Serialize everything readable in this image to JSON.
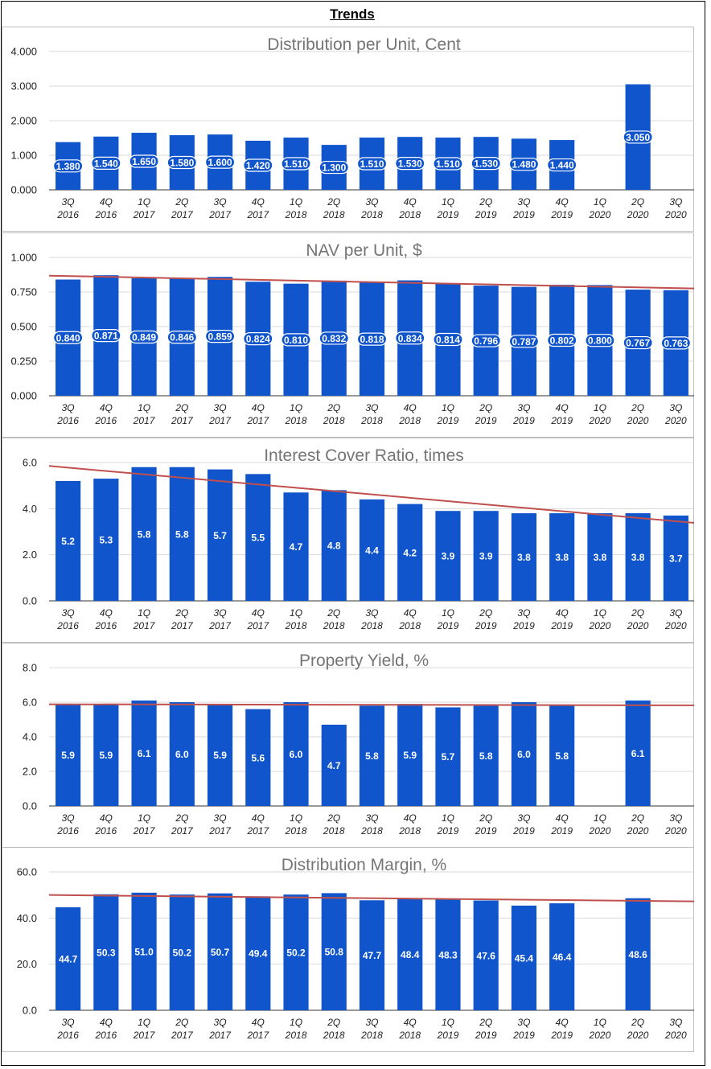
{
  "page": {
    "title": "Trends"
  },
  "colors": {
    "bar": "#1155cc",
    "trend": "#c0504d",
    "grid": "#d9d9d9",
    "frame": "#bfbfbf"
  },
  "chart_data": [
    {
      "type": "bar",
      "title": "Distribution per Unit, Cent",
      "categories": [
        "3Q 2016",
        "4Q 2016",
        "1Q 2017",
        "2Q 2017",
        "3Q 2017",
        "4Q 2017",
        "1Q 2018",
        "2Q 2018",
        "3Q 2018",
        "4Q 2018",
        "1Q 2019",
        "2Q 2019",
        "3Q 2019",
        "4Q 2019",
        "1Q 2020",
        "2Q 2020",
        "3Q 2020"
      ],
      "values": [
        1.38,
        1.54,
        1.65,
        1.58,
        1.6,
        1.42,
        1.51,
        1.3,
        1.51,
        1.53,
        1.51,
        1.53,
        1.48,
        1.44,
        null,
        3.05,
        null
      ],
      "labels": [
        "1.380",
        "1.540",
        "1.650",
        "1.580",
        "1.600",
        "1.420",
        "1.510",
        "1.300",
        "1.510",
        "1.530",
        "1.510",
        "1.530",
        "1.480",
        "1.440",
        null,
        "3.050",
        null
      ],
      "ylim": [
        0,
        4
      ],
      "yticks": [
        "0.000",
        "1.000",
        "2.000",
        "3.000",
        "4.000"
      ],
      "yticks_values": [
        0,
        1,
        2,
        3,
        4
      ],
      "trendline": null,
      "label_style": "pill"
    },
    {
      "type": "bar",
      "title": "NAV per Unit, $",
      "categories": [
        "3Q 2016",
        "4Q 2016",
        "1Q 2017",
        "2Q 2017",
        "3Q 2017",
        "4Q 2017",
        "1Q 2018",
        "2Q 2018",
        "3Q 2018",
        "4Q 2018",
        "1Q 2019",
        "2Q 2019",
        "3Q 2019",
        "4Q 2019",
        "1Q 2020",
        "2Q 2020",
        "3Q 2020"
      ],
      "values": [
        0.84,
        0.871,
        0.849,
        0.846,
        0.859,
        0.824,
        0.81,
        0.832,
        0.818,
        0.834,
        0.814,
        0.796,
        0.787,
        0.802,
        0.8,
        0.767,
        0.763
      ],
      "labels": [
        "0.840",
        "0.871",
        "0.849",
        "0.846",
        "0.859",
        "0.824",
        "0.810",
        "0.832",
        "0.818",
        "0.834",
        "0.814",
        "0.796",
        "0.787",
        "0.802",
        "0.800",
        "0.767",
        "0.763"
      ],
      "ylim": [
        0,
        1
      ],
      "yticks": [
        "0.000",
        "0.250",
        "0.500",
        "0.750",
        "1.000"
      ],
      "yticks_values": [
        0,
        0.25,
        0.5,
        0.75,
        1
      ],
      "trendline": [
        0.868,
        0.775
      ],
      "label_style": "pill"
    },
    {
      "type": "bar",
      "title": "Interest Cover Ratio, times",
      "categories": [
        "3Q 2016",
        "4Q 2016",
        "1Q 2017",
        "2Q 2017",
        "3Q 2017",
        "4Q 2017",
        "1Q 2018",
        "2Q 2018",
        "3Q 2018",
        "4Q 2018",
        "1Q 2019",
        "2Q 2019",
        "3Q 2019",
        "4Q 2019",
        "1Q 2020",
        "2Q 2020",
        "3Q 2020"
      ],
      "values": [
        5.2,
        5.3,
        5.8,
        5.8,
        5.7,
        5.5,
        4.7,
        4.8,
        4.4,
        4.2,
        3.9,
        3.9,
        3.8,
        3.8,
        3.8,
        3.8,
        3.7
      ],
      "labels": [
        "5.2",
        "5.3",
        "5.8",
        "5.8",
        "5.7",
        "5.5",
        "4.7",
        "4.8",
        "4.4",
        "4.2",
        "3.9",
        "3.9",
        "3.8",
        "3.8",
        "3.8",
        "3.8",
        "3.7"
      ],
      "ylim": [
        0,
        6
      ],
      "yticks": [
        "0.0",
        "2.0",
        "4.0",
        "6.0"
      ],
      "yticks_values": [
        0,
        2,
        4,
        6
      ],
      "trendline": [
        5.85,
        3.38
      ],
      "label_style": "plain"
    },
    {
      "type": "bar",
      "title": "Property Yield, %",
      "categories": [
        "3Q 2016",
        "4Q 2016",
        "1Q 2017",
        "2Q 2017",
        "3Q 2017",
        "4Q 2017",
        "1Q 2018",
        "2Q 2018",
        "3Q 2018",
        "4Q 2018",
        "1Q 2019",
        "2Q 2019",
        "3Q 2019",
        "4Q 2019",
        "1Q 2020",
        "2Q 2020",
        "3Q 2020"
      ],
      "values": [
        5.9,
        5.9,
        6.1,
        6.0,
        5.9,
        5.6,
        6.0,
        4.7,
        5.8,
        5.9,
        5.7,
        5.8,
        6.0,
        5.8,
        null,
        6.1,
        null
      ],
      "labels": [
        "5.9",
        "5.9",
        "6.1",
        "6.0",
        "5.9",
        "5.6",
        "6.0",
        "4.7",
        "5.8",
        "5.9",
        "5.7",
        "5.8",
        "6.0",
        "5.8",
        null,
        "6.1",
        null
      ],
      "ylim": [
        0,
        8
      ],
      "yticks": [
        "0.0",
        "2.0",
        "4.0",
        "6.0",
        "8.0"
      ],
      "yticks_values": [
        0,
        2,
        4,
        6,
        8
      ],
      "trendline": [
        5.88,
        5.82
      ],
      "label_style": "plain"
    },
    {
      "type": "bar",
      "title": "Distribution Margin, %",
      "categories": [
        "3Q 2016",
        "4Q 2016",
        "1Q 2017",
        "2Q 2017",
        "3Q 2017",
        "4Q 2017",
        "1Q 2018",
        "2Q 2018",
        "3Q 2018",
        "4Q 2018",
        "1Q 2019",
        "2Q 2019",
        "3Q 2019",
        "4Q 2019",
        "1Q 2020",
        "2Q 2020",
        "3Q 2020"
      ],
      "values": [
        44.7,
        50.3,
        51.0,
        50.2,
        50.7,
        49.4,
        50.2,
        50.8,
        47.7,
        48.4,
        48.3,
        47.6,
        45.4,
        46.4,
        null,
        48.6,
        null
      ],
      "labels": [
        "44.7",
        "50.3",
        "51.0",
        "50.2",
        "50.7",
        "49.4",
        "50.2",
        "50.8",
        "47.7",
        "48.4",
        "48.3",
        "47.6",
        "45.4",
        "46.4",
        null,
        "48.6",
        null
      ],
      "ylim": [
        0,
        60
      ],
      "yticks": [
        "0.0",
        "20.0",
        "40.0",
        "60.0"
      ],
      "yticks_values": [
        0,
        20,
        40,
        60
      ],
      "trendline": [
        50.0,
        47.2
      ],
      "label_style": "plain"
    }
  ]
}
